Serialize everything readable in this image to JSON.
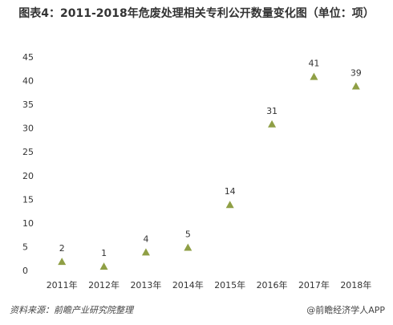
{
  "chart_data": {
    "type": "scatter",
    "title": "图表4：2011-2018年危废处理相关专利公开数量变化图（单位：项）",
    "categories": [
      "2011年",
      "2012年",
      "2013年",
      "2014年",
      "2015年",
      "2016年",
      "2017年",
      "2018年"
    ],
    "values": [
      2,
      1,
      4,
      5,
      14,
      31,
      41,
      39
    ],
    "color": "#8f9f45",
    "marker": "triangle",
    "ylim": [
      0,
      45
    ],
    "yticks": [
      0,
      5,
      10,
      15,
      20,
      25,
      30,
      35,
      40,
      45
    ],
    "grid": false,
    "source": "资料来源：前瞻产业研究院整理",
    "credit": "@前瞻经济学人APP"
  }
}
